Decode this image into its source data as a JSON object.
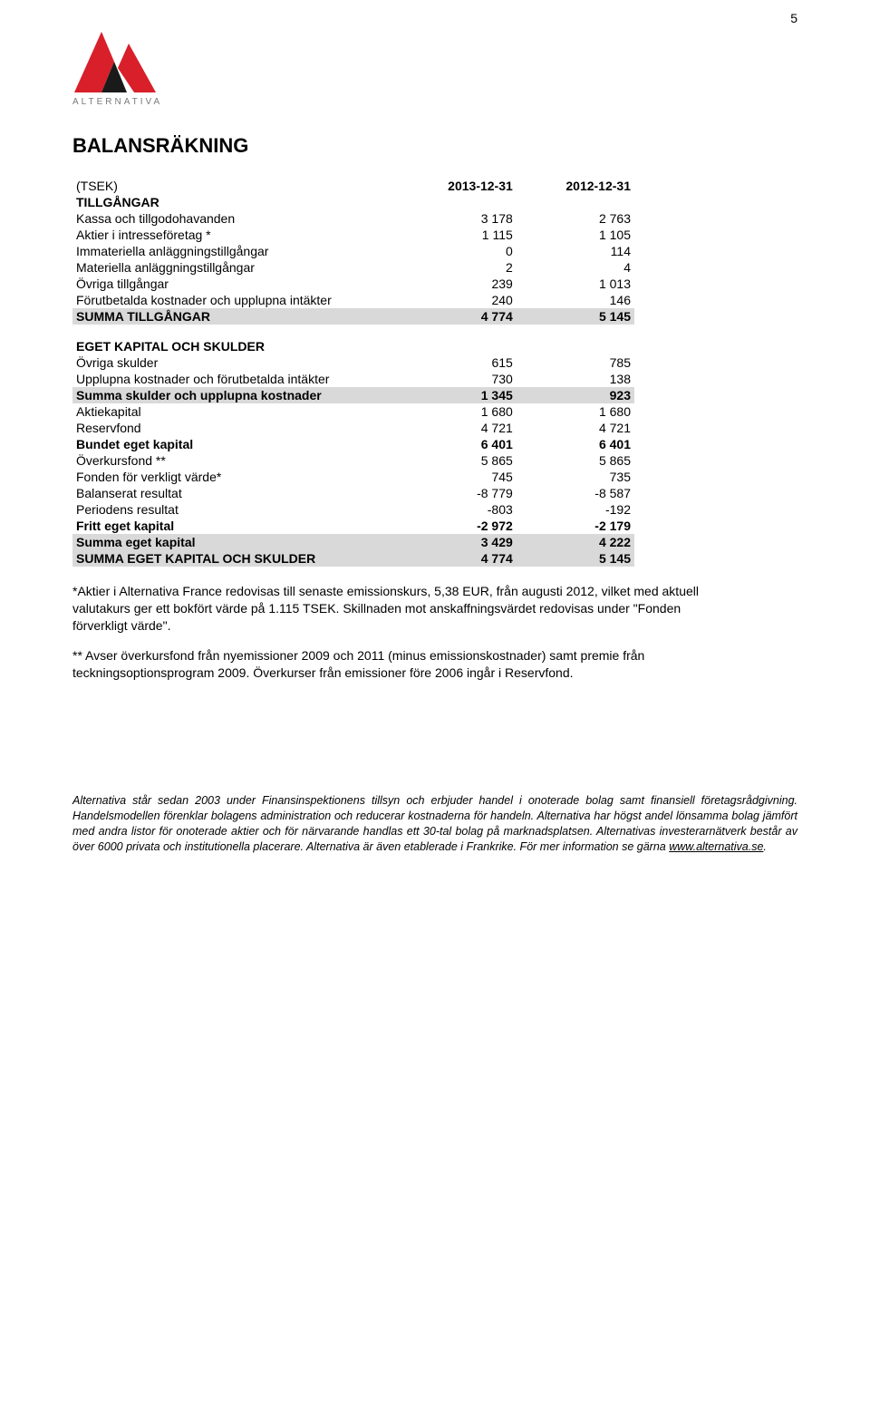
{
  "page_number": "5",
  "logo": {
    "text": "ALTERNATIVA",
    "colors": {
      "red": "#d81f2a",
      "dark": "#1a1a1a"
    }
  },
  "title": "BALANSRÄKNING",
  "table": {
    "unit_label": "(TSEK)",
    "col1": "2013-12-31",
    "col2": "2012-12-31",
    "sections": [
      {
        "header": "TILLGÅNGAR"
      },
      {
        "label": "Kassa och tillgodohavanden",
        "v1": "3 178",
        "v2": "2 763"
      },
      {
        "label": "Aktier i intresseföretag *",
        "v1": "1 115",
        "v2": "1 105"
      },
      {
        "label": "Immateriella anläggningstillgångar",
        "v1": "0",
        "v2": "114"
      },
      {
        "label": "Materiella anläggningstillgångar",
        "v1": "2",
        "v2": "4"
      },
      {
        "label": "Övriga tillgångar",
        "v1": "239",
        "v2": "1 013"
      },
      {
        "label": "Förutbetalda kostnader och upplupna intäkter",
        "v1": "240",
        "v2": "146"
      },
      {
        "label": "SUMMA TILLGÅNGAR",
        "v1": "4 774",
        "v2": "5 145",
        "shade": true
      },
      {
        "gap": true,
        "header": "EGET KAPITAL OCH SKULDER"
      },
      {
        "label": "Övriga skulder",
        "v1": "615",
        "v2": "785"
      },
      {
        "label": "Upplupna kostnader och förutbetalda intäkter",
        "v1": "730",
        "v2": "138"
      },
      {
        "label": "Summa skulder och upplupna kostnader",
        "v1": "1 345",
        "v2": "923",
        "shade": true
      },
      {
        "label": "Aktiekapital",
        "v1": "1 680",
        "v2": "1 680"
      },
      {
        "label": "Reservfond",
        "v1": "4 721",
        "v2": "4 721"
      },
      {
        "label": "Bundet eget kapital",
        "v1": "6 401",
        "v2": "6 401",
        "bold": true
      },
      {
        "label": "Överkursfond **",
        "v1": "5 865",
        "v2": "5 865"
      },
      {
        "label": "Fonden för verkligt värde*",
        "v1": "745",
        "v2": "735"
      },
      {
        "label": "Balanserat resultat",
        "v1": "-8 779",
        "v2": "-8 587"
      },
      {
        "label": "Periodens resultat",
        "v1": "-803",
        "v2": "-192"
      },
      {
        "label": "Fritt eget kapital",
        "v1": "-2 972",
        "v2": "-2 179",
        "bold": true
      },
      {
        "label": "Summa eget kapital",
        "v1": "3 429",
        "v2": "4 222",
        "shade": true
      },
      {
        "label": "SUMMA EGET KAPITAL OCH SKULDER",
        "v1": "4 774",
        "v2": "5 145",
        "shade": true
      }
    ]
  },
  "notes": {
    "p1": "*Aktier i Alternativa France redovisas till senaste emissionskurs, 5,38 EUR, från augusti 2012, vilket med aktuell valutakurs ger ett bokfört värde på 1.115 TSEK. Skillnaden mot anskaffningsvärdet redovisas under \"Fonden förverkligt värde\".",
    "p2": "** Avser överkursfond från nyemissioner 2009 och 2011 (minus emissionskostnader) samt premie från teckningsoptionsprogram 2009. Överkurser från emissioner före 2006 ingår i Reservfond."
  },
  "footer": {
    "text_before_link": "Alternativa står sedan 2003 under Finansinspektionens tillsyn och erbjuder handel i onoterade bolag samt finansiell företagsrådgivning. Handelsmodellen förenklar bolagens administration och reducerar kostnaderna för handeln. Alternativa har högst andel lönsamma bolag jämfört med andra listor för onoterade aktier och för närvarande handlas ett 30-tal bolag på marknadsplatsen. Alternativas investerarnätverk består av över 6000 privata och institutionella placerare. Alternativa är även etablerade i Frankrike. För mer information se gärna ",
    "link_text": "www.alternativa.se",
    "text_after_link": "."
  }
}
